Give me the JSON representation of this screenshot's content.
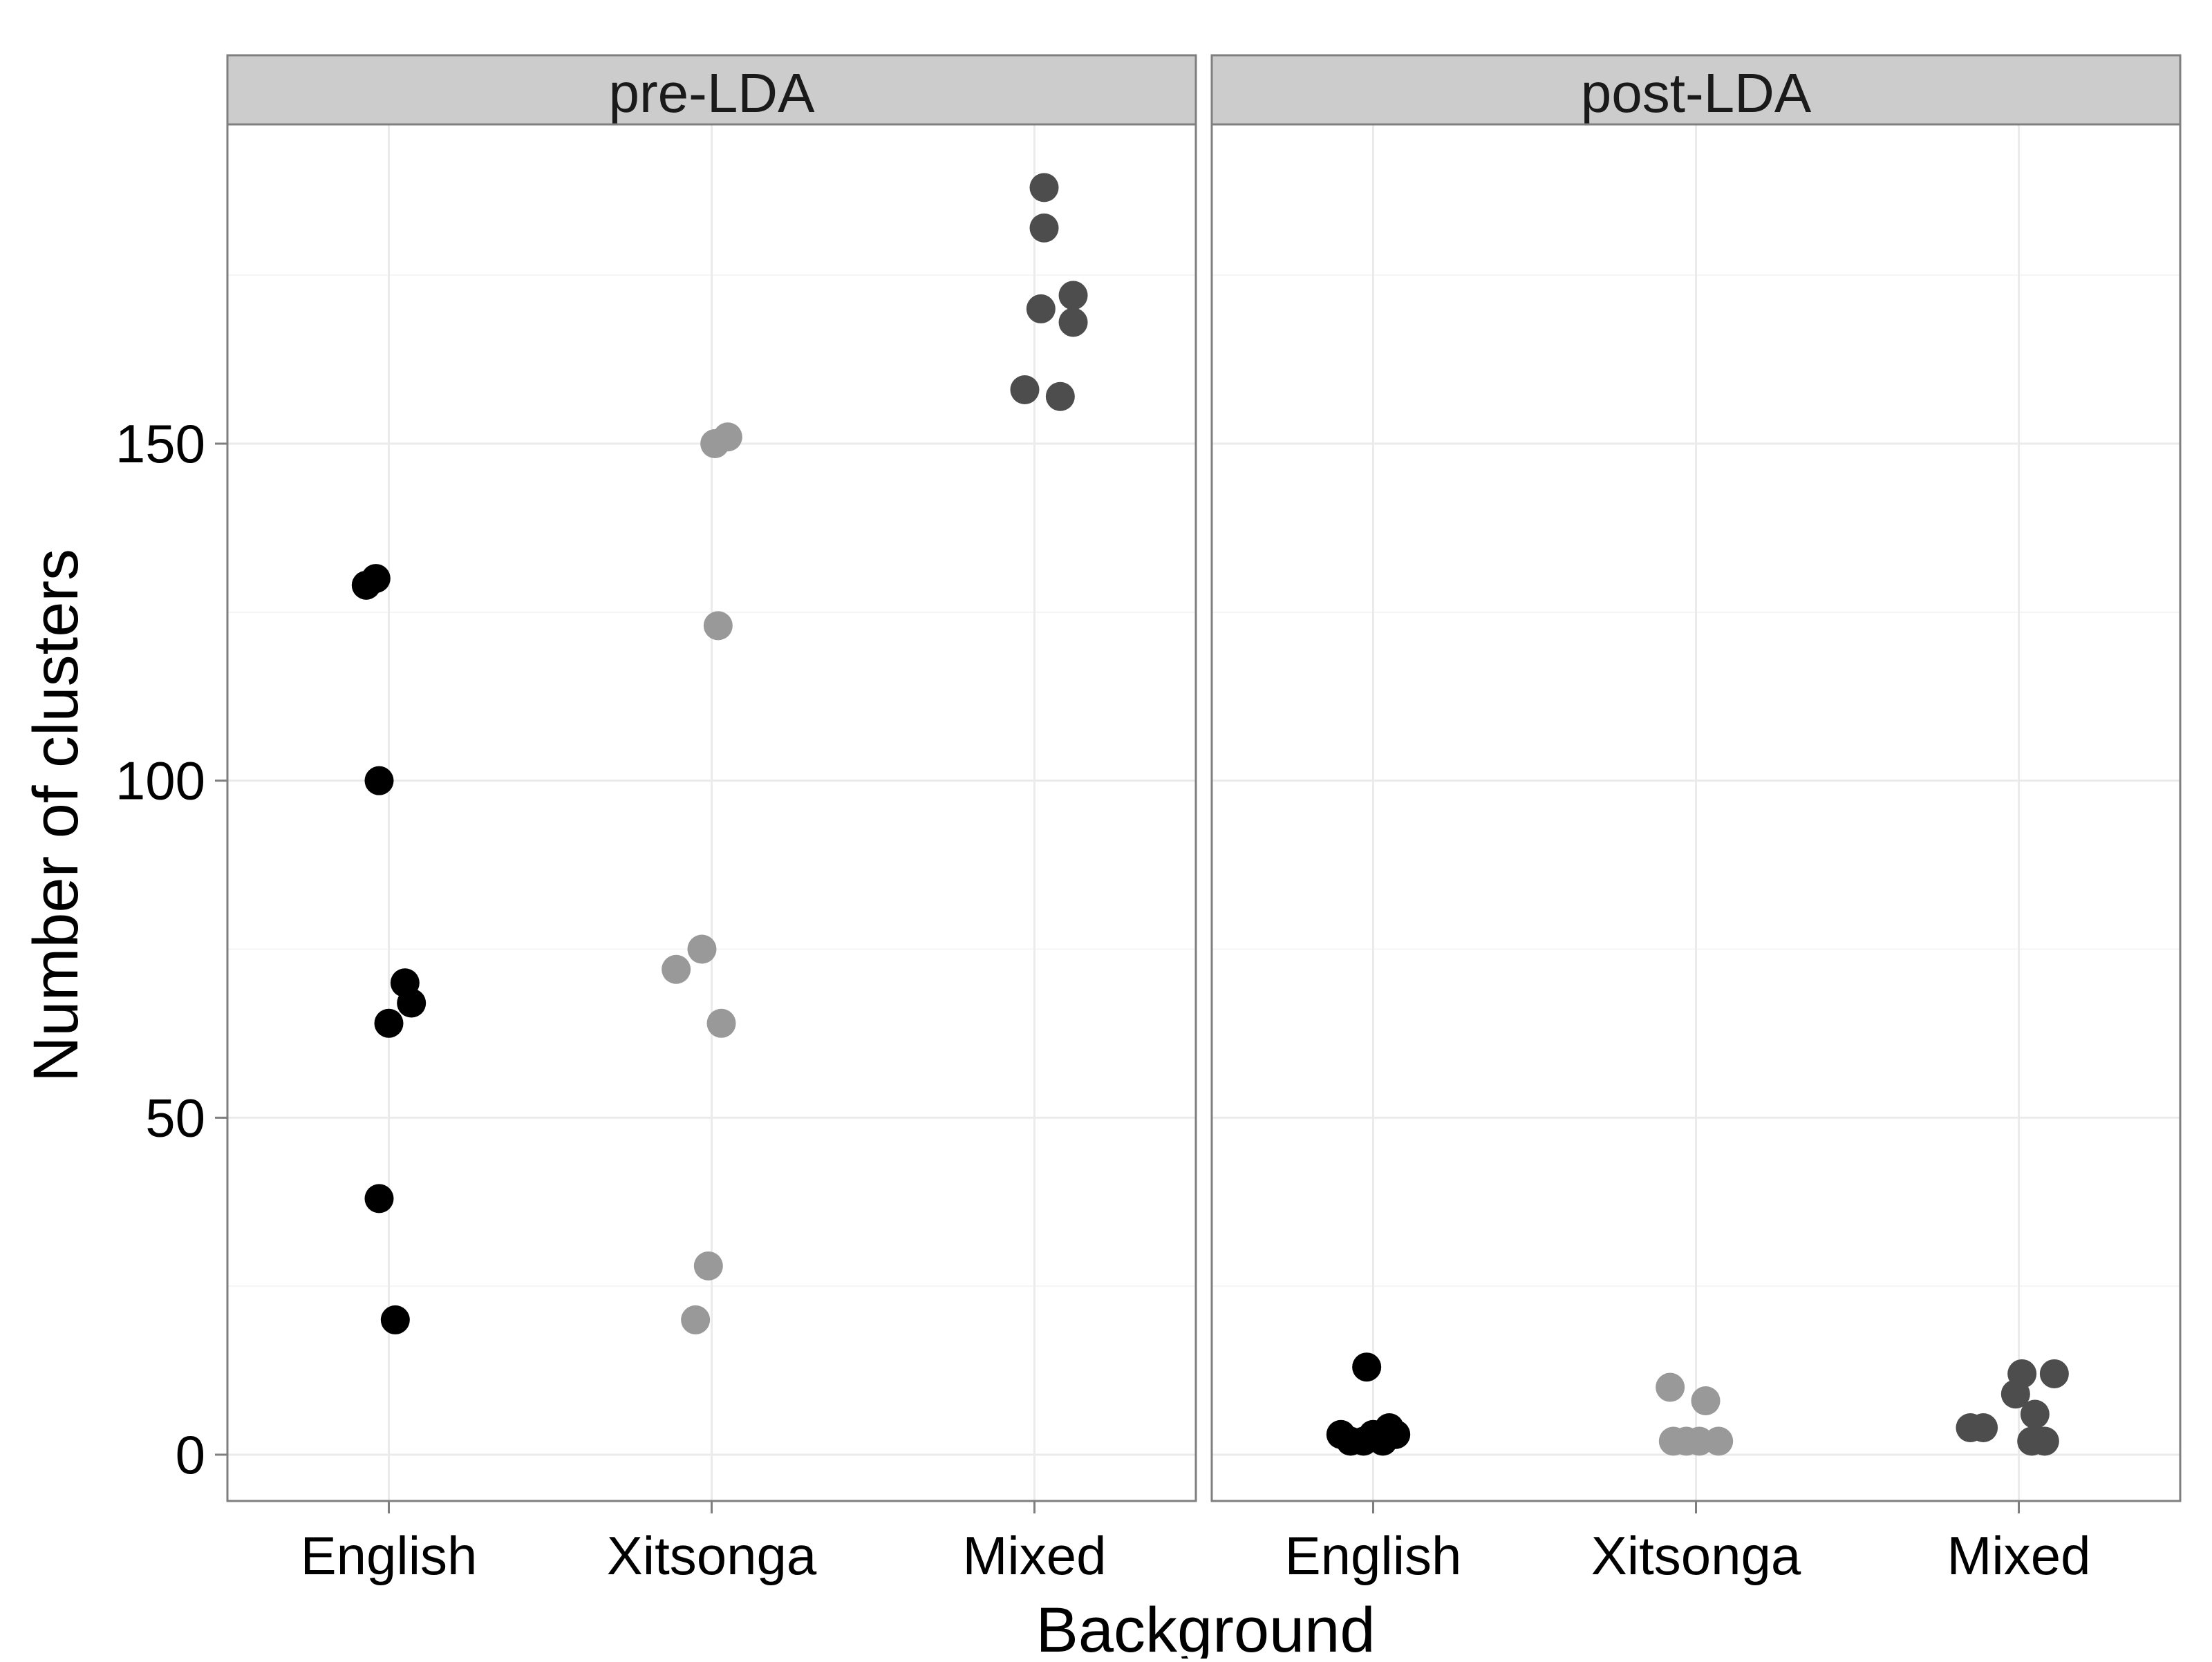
{
  "chart_data": {
    "type": "scatter",
    "facets": [
      "pre-LDA",
      "post-LDA"
    ],
    "categories": [
      "English",
      "Xitsonga",
      "Mixed"
    ],
    "xlabel": "Background",
    "ylabel": "Number of clusters",
    "ylim": [
      -7,
      197
    ],
    "yticks": [
      0,
      50,
      100,
      150
    ],
    "grid": true,
    "legend": "none",
    "colors": {
      "English": "#000000",
      "Xitsonga": "#999999",
      "Mixed": "#4d4d4d",
      "strip_bg": "#cccccc",
      "grid_major": "#ebebeb",
      "grid_minor": "#f5f5f5",
      "panel_border": "#7f7f7f"
    },
    "points": [
      {
        "facet": "pre-LDA",
        "category": "English",
        "jitter": -0.07,
        "y": 129
      },
      {
        "facet": "pre-LDA",
        "category": "English",
        "jitter": -0.04,
        "y": 130
      },
      {
        "facet": "pre-LDA",
        "category": "English",
        "jitter": -0.03,
        "y": 100
      },
      {
        "facet": "pre-LDA",
        "category": "English",
        "jitter": 0.05,
        "y": 70
      },
      {
        "facet": "pre-LDA",
        "category": "English",
        "jitter": 0.07,
        "y": 67
      },
      {
        "facet": "pre-LDA",
        "category": "English",
        "jitter": 0.0,
        "y": 64
      },
      {
        "facet": "pre-LDA",
        "category": "English",
        "jitter": -0.03,
        "y": 38
      },
      {
        "facet": "pre-LDA",
        "category": "English",
        "jitter": 0.02,
        "y": 20
      },
      {
        "facet": "pre-LDA",
        "category": "Xitsonga",
        "jitter": 0.01,
        "y": 150
      },
      {
        "facet": "pre-LDA",
        "category": "Xitsonga",
        "jitter": 0.05,
        "y": 151
      },
      {
        "facet": "pre-LDA",
        "category": "Xitsonga",
        "jitter": 0.02,
        "y": 123
      },
      {
        "facet": "pre-LDA",
        "category": "Xitsonga",
        "jitter": -0.03,
        "y": 75
      },
      {
        "facet": "pre-LDA",
        "category": "Xitsonga",
        "jitter": -0.11,
        "y": 72
      },
      {
        "facet": "pre-LDA",
        "category": "Xitsonga",
        "jitter": 0.03,
        "y": 64
      },
      {
        "facet": "pre-LDA",
        "category": "Xitsonga",
        "jitter": -0.01,
        "y": 28
      },
      {
        "facet": "pre-LDA",
        "category": "Xitsonga",
        "jitter": -0.05,
        "y": 20
      },
      {
        "facet": "pre-LDA",
        "category": "Mixed",
        "jitter": 0.03,
        "y": 188
      },
      {
        "facet": "pre-LDA",
        "category": "Mixed",
        "jitter": 0.03,
        "y": 182
      },
      {
        "facet": "pre-LDA",
        "category": "Mixed",
        "jitter": 0.12,
        "y": 172
      },
      {
        "facet": "pre-LDA",
        "category": "Mixed",
        "jitter": 0.02,
        "y": 170
      },
      {
        "facet": "pre-LDA",
        "category": "Mixed",
        "jitter": 0.12,
        "y": 168
      },
      {
        "facet": "pre-LDA",
        "category": "Mixed",
        "jitter": -0.03,
        "y": 158
      },
      {
        "facet": "pre-LDA",
        "category": "Mixed",
        "jitter": 0.08,
        "y": 157
      },
      {
        "facet": "post-LDA",
        "category": "English",
        "jitter": -0.1,
        "y": 3
      },
      {
        "facet": "post-LDA",
        "category": "English",
        "jitter": -0.07,
        "y": 2
      },
      {
        "facet": "post-LDA",
        "category": "English",
        "jitter": -0.03,
        "y": 2
      },
      {
        "facet": "post-LDA",
        "category": "English",
        "jitter": 0.0,
        "y": 3
      },
      {
        "facet": "post-LDA",
        "category": "English",
        "jitter": 0.03,
        "y": 2
      },
      {
        "facet": "post-LDA",
        "category": "English",
        "jitter": 0.05,
        "y": 4
      },
      {
        "facet": "post-LDA",
        "category": "English",
        "jitter": 0.07,
        "y": 3
      },
      {
        "facet": "post-LDA",
        "category": "English",
        "jitter": -0.02,
        "y": 13
      },
      {
        "facet": "post-LDA",
        "category": "Xitsonga",
        "jitter": -0.08,
        "y": 10
      },
      {
        "facet": "post-LDA",
        "category": "Xitsonga",
        "jitter": 0.03,
        "y": 8
      },
      {
        "facet": "post-LDA",
        "category": "Xitsonga",
        "jitter": -0.07,
        "y": 2
      },
      {
        "facet": "post-LDA",
        "category": "Xitsonga",
        "jitter": -0.03,
        "y": 2
      },
      {
        "facet": "post-LDA",
        "category": "Xitsonga",
        "jitter": 0.01,
        "y": 2
      },
      {
        "facet": "post-LDA",
        "category": "Xitsonga",
        "jitter": 0.07,
        "y": 2
      },
      {
        "facet": "post-LDA",
        "category": "Mixed",
        "jitter": -0.15,
        "y": 4
      },
      {
        "facet": "post-LDA",
        "category": "Mixed",
        "jitter": -0.11,
        "y": 4
      },
      {
        "facet": "post-LDA",
        "category": "Mixed",
        "jitter": 0.01,
        "y": 12
      },
      {
        "facet": "post-LDA",
        "category": "Mixed",
        "jitter": 0.11,
        "y": 12
      },
      {
        "facet": "post-LDA",
        "category": "Mixed",
        "jitter": -0.01,
        "y": 9
      },
      {
        "facet": "post-LDA",
        "category": "Mixed",
        "jitter": 0.05,
        "y": 6
      },
      {
        "facet": "post-LDA",
        "category": "Mixed",
        "jitter": 0.04,
        "y": 2
      },
      {
        "facet": "post-LDA",
        "category": "Mixed",
        "jitter": 0.08,
        "y": 2
      }
    ]
  }
}
